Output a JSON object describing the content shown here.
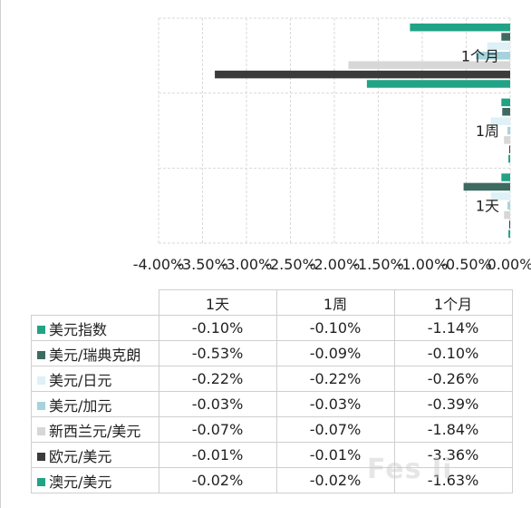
{
  "chart_data": {
    "type": "bar",
    "orientation": "horizontal",
    "categories": [
      "1天",
      "1周",
      "1个月"
    ],
    "xlim": [
      -4.0,
      0.0
    ],
    "x_ticks": [
      "-4.00%",
      "-3.50%",
      "-3.00%",
      "-2.50%",
      "-2.00%",
      "-1.50%",
      "-1.00%",
      "-0.50%",
      "0.00%"
    ],
    "grid": true,
    "series": [
      {
        "name": "美元指数",
        "color": "#21a386",
        "values": [
          -0.1,
          -0.1,
          -1.14
        ]
      },
      {
        "name": "美元/瑞典克朗",
        "color": "#3d6b62",
        "values": [
          -0.53,
          -0.09,
          -0.1
        ]
      },
      {
        "name": "美元/日元",
        "color": "#ddf1f6",
        "values": [
          -0.22,
          -0.22,
          -0.26
        ]
      },
      {
        "name": "美元/加元",
        "color": "#a4d3dc",
        "values": [
          -0.03,
          -0.03,
          -0.39
        ]
      },
      {
        "name": "新西兰元/美元",
        "color": "#d7d7d7",
        "values": [
          -0.07,
          -0.07,
          -1.84
        ]
      },
      {
        "name": "欧元/美元",
        "color": "#3b3b3b",
        "values": [
          -0.01,
          -0.01,
          -3.36
        ]
      },
      {
        "name": "澳元/美元",
        "color": "#21a386",
        "values": [
          -0.02,
          -0.02,
          -1.63
        ]
      }
    ],
    "table": {
      "columns": [
        "1天",
        "1周",
        "1个月"
      ],
      "rows": [
        [
          "-0.10%",
          "-0.10%",
          "-1.14%"
        ],
        [
          "-0.53%",
          "-0.09%",
          "-0.10%"
        ],
        [
          "-0.22%",
          "-0.22%",
          "-0.26%"
        ],
        [
          "-0.03%",
          "-0.03%",
          "-0.39%"
        ],
        [
          "-0.07%",
          "-0.07%",
          "-1.84%"
        ],
        [
          "-0.01%",
          "-0.01%",
          "-3.36%"
        ],
        [
          "-0.02%",
          "-0.02%",
          "-1.63%"
        ]
      ]
    }
  },
  "watermark": "Fes    li"
}
